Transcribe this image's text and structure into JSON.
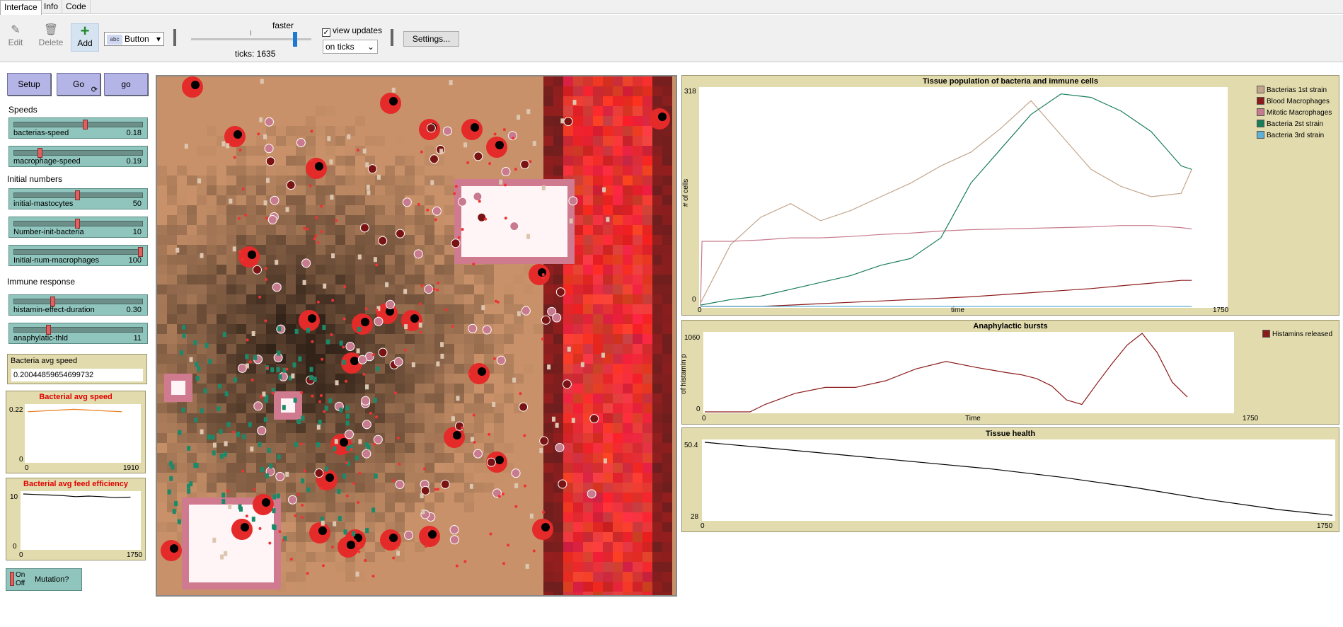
{
  "tabs": [
    {
      "label": "Interface",
      "active": true
    },
    {
      "label": "Info",
      "active": false
    },
    {
      "label": "Code",
      "active": false
    }
  ],
  "toolbar": {
    "edit": "Edit",
    "delete": "Delete",
    "add": "Add",
    "widget_type": "Button",
    "speed_label": "faster",
    "speed_fraction": 0.83,
    "ticks": "ticks: 1635",
    "view_updates_label": "view updates",
    "view_updates_checked": true,
    "update_mode": "on ticks",
    "settings": "Settings..."
  },
  "buttons": {
    "setup": "Setup",
    "go_forever": "Go",
    "go_once": "go"
  },
  "sections": {
    "speeds": "Speeds",
    "initial_numbers": "Initial numbers",
    "immune_response": "Immune response"
  },
  "sliders": [
    {
      "name": "bacterias-speed",
      "value": "0.18",
      "fraction": 0.55
    },
    {
      "name": "macrophage-speed",
      "value": "0.19",
      "fraction": 0.19
    },
    {
      "name": "initial-mastocytes",
      "value": "50",
      "fraction": 0.49
    },
    {
      "name": "Number-init-bacteria",
      "value": "10",
      "fraction": 0.49
    },
    {
      "name": "Initial-num-macrophages",
      "value": "100",
      "fraction": 0.99
    },
    {
      "name": "histamin-effect-duration",
      "value": "0.30",
      "fraction": 0.29
    },
    {
      "name": "anaphylatic-thld",
      "value": "11",
      "fraction": 0.26
    }
  ],
  "monitor": {
    "label": "Bacteria avg speed",
    "value": "0.20044859654699732"
  },
  "small_plots": [
    {
      "title": "Bacterial avg speed",
      "ymax": "0.22",
      "ymin": "0",
      "xmin": "0",
      "xmax": "1910",
      "color": "#e87d1e"
    },
    {
      "title": "Bacterial avg feed efficiency",
      "ymax": "10",
      "ymin": "0",
      "xmin": "0",
      "xmax": "1750",
      "color": "#000000"
    }
  ],
  "mutation_switch": {
    "on": "On",
    "off": "Off",
    "label": "Mutation?"
  },
  "big_plots": {
    "tissue": {
      "title": "Tissue population of bacteria and immune cells",
      "ymax": "318",
      "ymin": "0",
      "xmin": "0",
      "xmax": "1750",
      "xlabel": "time",
      "ylabel": "# of cells",
      "legend": [
        {
          "name": "Bacterias 1st strain",
          "color": "#c3a58b"
        },
        {
          "name": "Blood Macrophages",
          "color": "#8b1a1a"
        },
        {
          "name": "Mitotic Macrophages",
          "color": "#c87b8e"
        },
        {
          "name": "Bacteria 2st strain",
          "color": "#1a7d5a"
        },
        {
          "name": "Bacteria 3rd strain",
          "color": "#5fb0d4"
        }
      ]
    },
    "anaphylactic": {
      "title": "Anaphylactic bursts",
      "ymax": "1060",
      "ymin": "0",
      "xmin": "0",
      "xmax": "1750",
      "xlabel": "Time",
      "ylabel": "of histamin p",
      "legend": [
        {
          "name": "Histamins released",
          "color": "#8b1a1a"
        }
      ]
    },
    "health": {
      "title": "Tissue health",
      "ymax": "50.4",
      "ymin": "28",
      "xmin": "0",
      "xmax": "1750",
      "xlabel": "",
      "ylabel": ""
    }
  },
  "chart_data": [
    {
      "type": "line",
      "title": "Tissue population of bacteria and immune cells",
      "xlabel": "time",
      "ylabel": "# of cells",
      "xlim": [
        0,
        1750
      ],
      "ylim": [
        0,
        318
      ],
      "series": [
        {
          "name": "Bacterias 1st strain",
          "x": [
            0,
            100,
            200,
            300,
            400,
            500,
            600,
            700,
            800,
            900,
            1000,
            1100,
            1200,
            1300,
            1400,
            1500,
            1600,
            1635
          ],
          "y": [
            5,
            90,
            130,
            150,
            125,
            140,
            160,
            180,
            205,
            225,
            260,
            300,
            250,
            200,
            175,
            160,
            165,
            200
          ]
        },
        {
          "name": "Blood Macrophages",
          "x": [
            0,
            100,
            200,
            300,
            400,
            500,
            600,
            700,
            800,
            900,
            1000,
            1100,
            1200,
            1300,
            1400,
            1500,
            1600,
            1635
          ],
          "y": [
            0,
            0,
            0,
            2,
            4,
            6,
            8,
            10,
            12,
            14,
            17,
            20,
            23,
            26,
            30,
            34,
            38,
            38
          ]
        },
        {
          "name": "Mitotic Macrophages",
          "x": [
            0,
            5,
            100,
            200,
            300,
            400,
            500,
            600,
            700,
            800,
            900,
            1000,
            1100,
            1200,
            1300,
            1400,
            1500,
            1600,
            1635
          ],
          "y": [
            0,
            95,
            95,
            97,
            100,
            100,
            102,
            105,
            107,
            110,
            112,
            113,
            114,
            115,
            116,
            118,
            118,
            115,
            113
          ]
        },
        {
          "name": "Bacteria 2st strain",
          "x": [
            0,
            100,
            200,
            300,
            400,
            500,
            600,
            700,
            800,
            900,
            1000,
            1100,
            1200,
            1300,
            1400,
            1500,
            1600,
            1635
          ],
          "y": [
            2,
            10,
            15,
            25,
            35,
            45,
            60,
            70,
            100,
            180,
            230,
            280,
            310,
            305,
            285,
            255,
            205,
            200
          ]
        },
        {
          "name": "Bacteria 3rd strain",
          "x": [
            0,
            1635
          ],
          "y": [
            0,
            0
          ]
        }
      ]
    },
    {
      "type": "line",
      "title": "Anaphylactic bursts",
      "xlabel": "Time",
      "ylabel": "of histamin p",
      "xlim": [
        0,
        1750
      ],
      "ylim": [
        0,
        1060
      ],
      "series": [
        {
          "name": "Histamins released",
          "x": [
            0,
            150,
            200,
            300,
            400,
            500,
            600,
            700,
            800,
            900,
            1000,
            1050,
            1100,
            1150,
            1200,
            1250,
            1300,
            1350,
            1400,
            1450,
            1500,
            1550,
            1600
          ],
          "y": [
            0,
            0,
            100,
            250,
            330,
            330,
            420,
            580,
            680,
            600,
            530,
            500,
            450,
            350,
            160,
            100,
            380,
            650,
            900,
            1060,
            800,
            400,
            200
          ]
        }
      ]
    },
    {
      "type": "line",
      "title": "Tissue health",
      "xlim": [
        0,
        1750
      ],
      "ylim": [
        28,
        50.4
      ],
      "series": [
        {
          "x": [
            0,
            200,
            400,
            600,
            800,
            1000,
            1200,
            1400,
            1600,
            1750
          ],
          "y": [
            50.4,
            48.5,
            46.5,
            44.5,
            42.5,
            40,
            37,
            33.5,
            30.5,
            28.8
          ]
        }
      ]
    },
    {
      "type": "line",
      "title": "Bacterial avg speed",
      "xlim": [
        0,
        1910
      ],
      "ylim": [
        0,
        0.22
      ],
      "series": [
        {
          "x": [
            0,
            400,
            800,
            1200,
            1635
          ],
          "y": [
            0.2,
            0.205,
            0.21,
            0.205,
            0.2
          ]
        }
      ]
    },
    {
      "type": "line",
      "title": "Bacterial avg feed efficiency",
      "xlim": [
        0,
        1750
      ],
      "ylim": [
        0,
        10
      ],
      "series": [
        {
          "x": [
            0,
            200,
            400,
            600,
            800,
            1000,
            1200,
            1400,
            1635
          ],
          "y": [
            10,
            9.9,
            9.8,
            9.7,
            9.5,
            9.6,
            9.5,
            9.3,
            9.4
          ]
        }
      ]
    }
  ],
  "colors": {
    "plot_bg": "#e2dbad",
    "slider_bg": "#8fc5bd",
    "button_bg": "#b4b4e6",
    "blood_vessel": "#dd2a2a",
    "tissue": "#8a6a4a"
  }
}
